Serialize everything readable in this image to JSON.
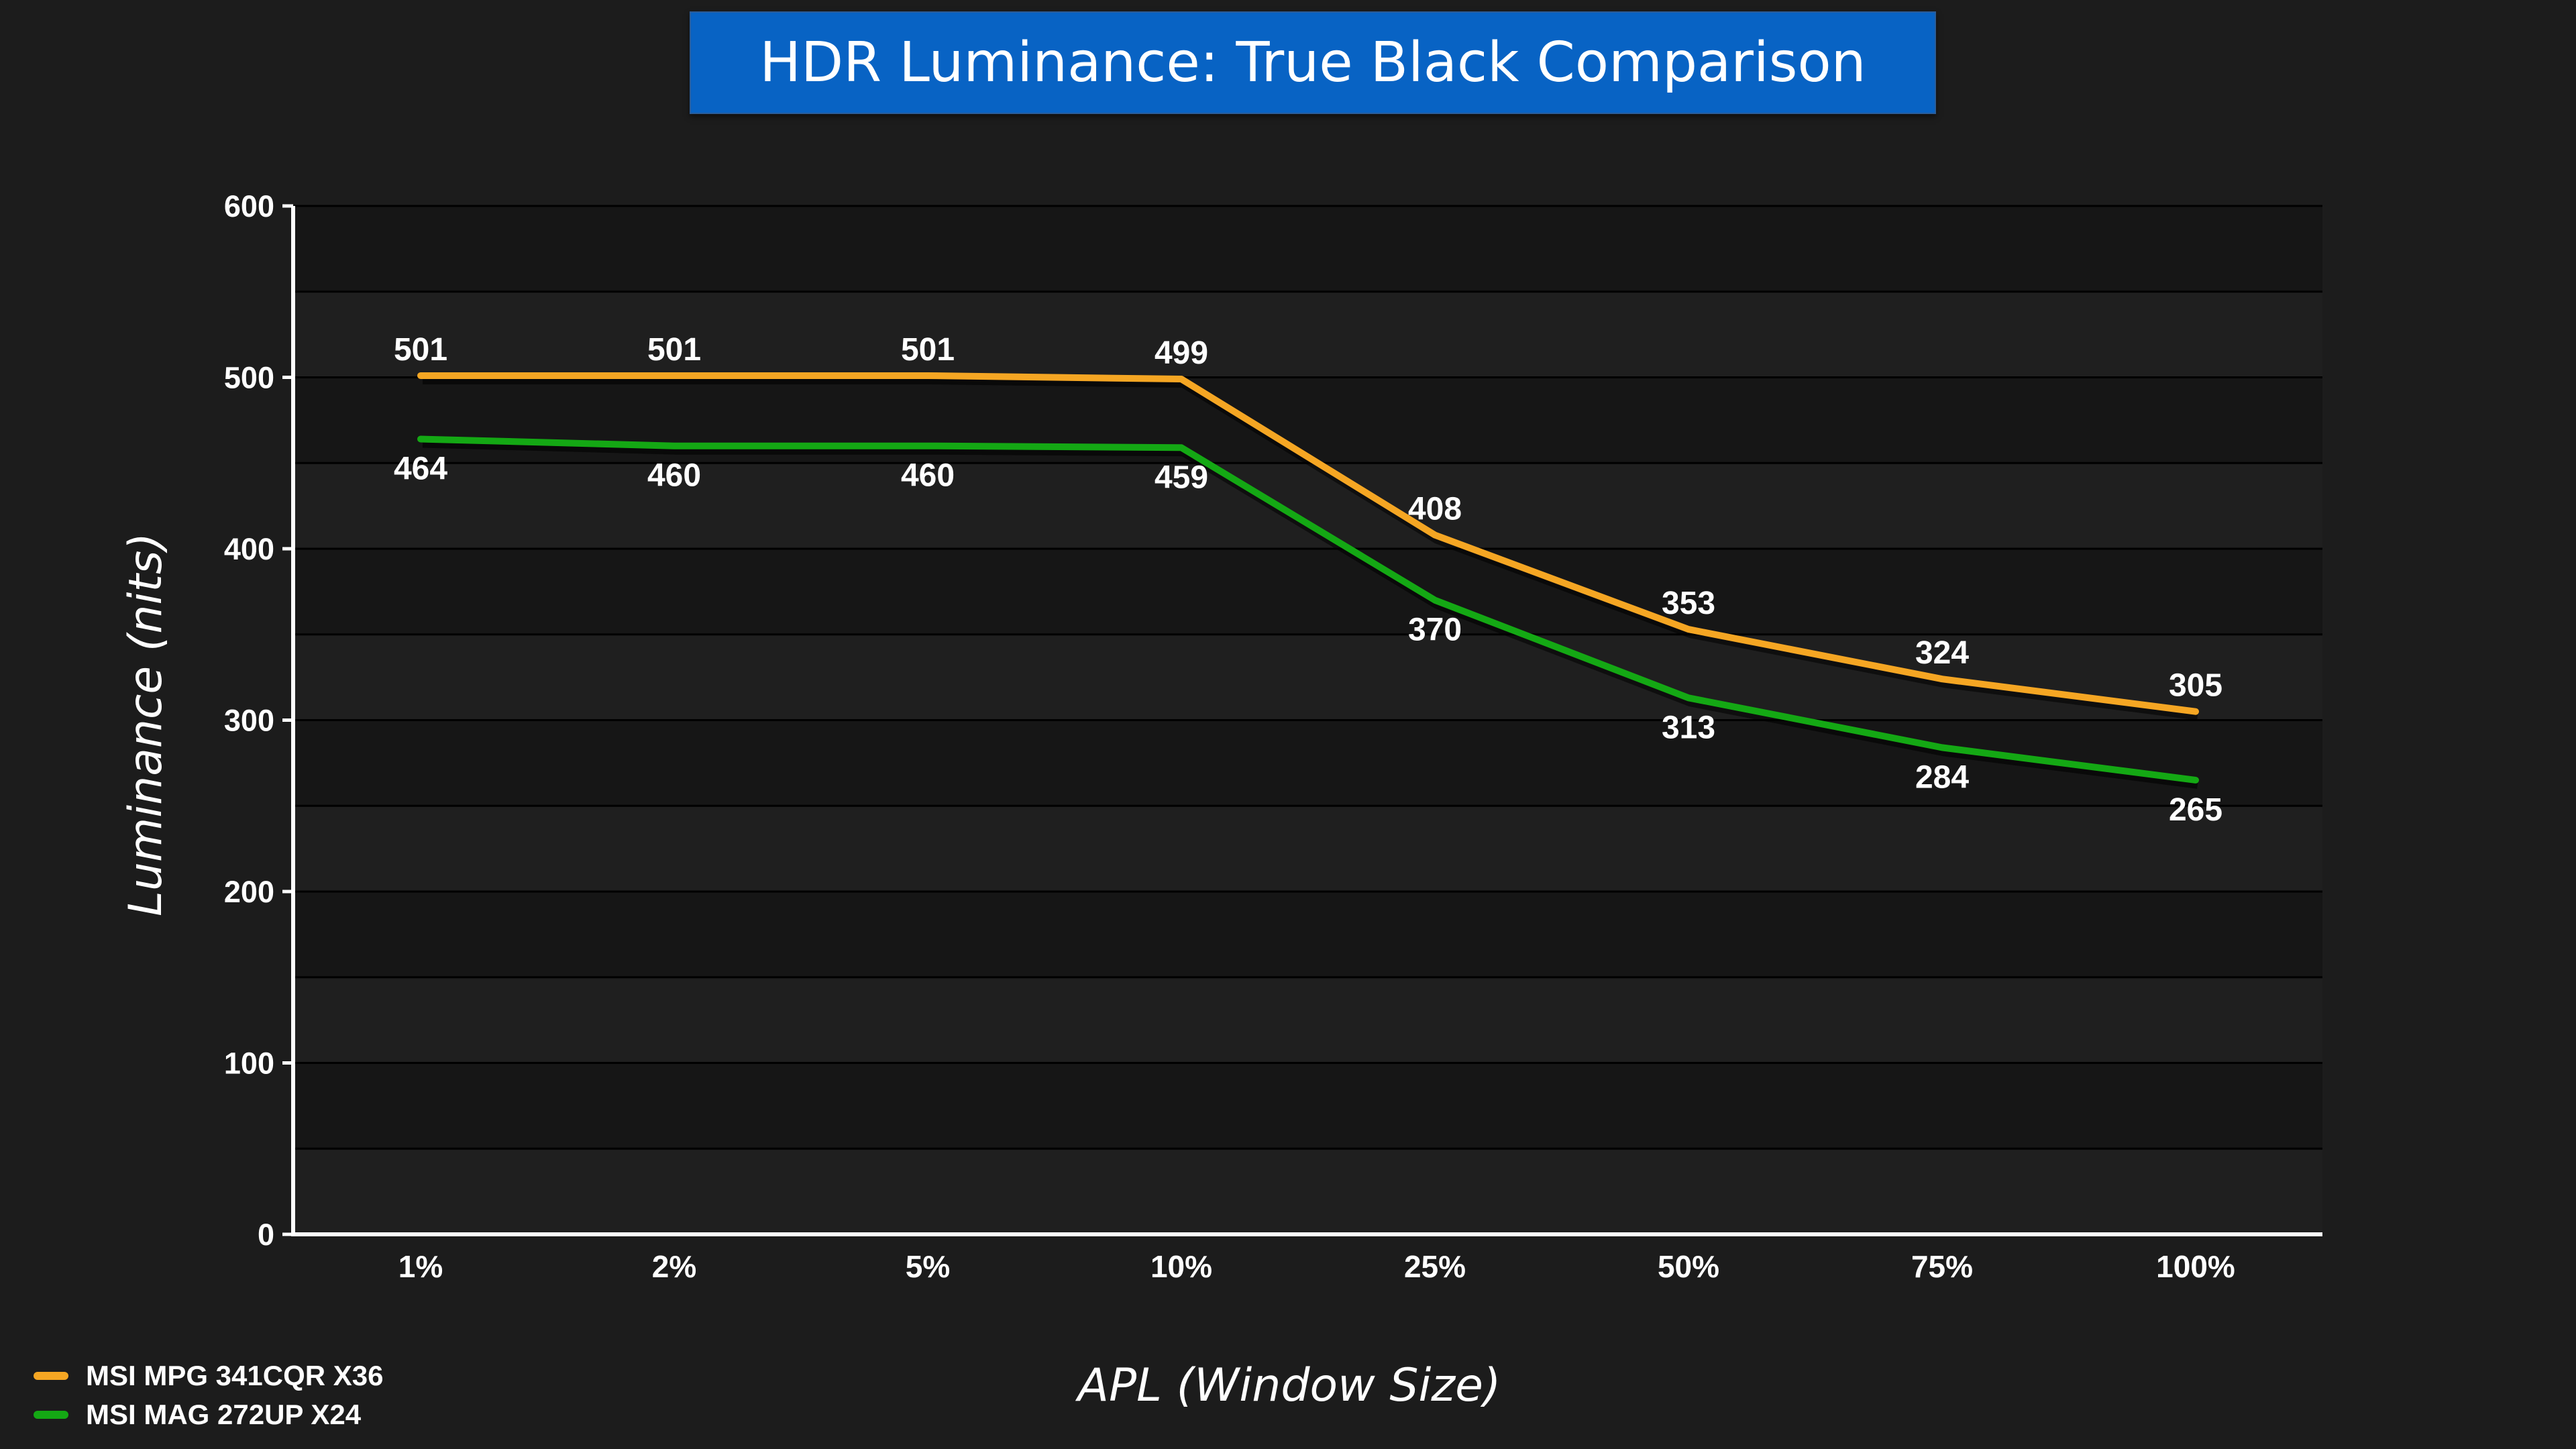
{
  "chart_data": {
    "type": "line",
    "title": "HDR Luminance: True Black Comparison",
    "xlabel": "APL (Window Size)",
    "ylabel": "Luminance (nits)",
    "categories": [
      "1%",
      "2%",
      "5%",
      "10%",
      "25%",
      "50%",
      "75%",
      "100%"
    ],
    "ylim": [
      0,
      600
    ],
    "yticks": [
      "0",
      "100",
      "200",
      "300",
      "400",
      "500",
      "600"
    ],
    "grid": true,
    "legend_position": "bottom-left",
    "data_labels": true,
    "series": [
      {
        "name": "MSI MPG 341CQR X36",
        "color": "#f5a623",
        "values": [
          501,
          501,
          501,
          499,
          408,
          353,
          324,
          305
        ]
      },
      {
        "name": "MSI MAG 272UP X24",
        "color": "#14a814",
        "values": [
          464,
          460,
          460,
          459,
          370,
          313,
          284,
          265
        ]
      }
    ]
  }
}
